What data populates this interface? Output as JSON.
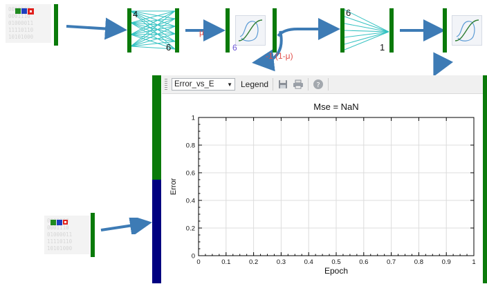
{
  "pipeline": {
    "input_binary_lines": [
      "0000000",
      "0001110",
      "01000011",
      "11110110",
      "10101000"
    ],
    "input_icon_colors": [
      "#1f8a1f",
      "#1f3fbf",
      "#e0201c"
    ],
    "layer1_in_label": "4",
    "layer1_out_label": "6",
    "mu_label": "μ",
    "activation_label": "6",
    "feedback_label": "-1 (1-μ)",
    "layer2_in_label": "6",
    "layer2_out_label": "1"
  },
  "toolbar": {
    "series_select": "Error_vs_E",
    "legend_label": "Legend",
    "save_icon": "floppy-disk-icon",
    "print_icon": "printer-icon",
    "help_icon": "help-icon"
  },
  "chart_data": {
    "type": "line",
    "title": "Mse = NaN",
    "xlabel": "Epoch",
    "ylabel": "Error",
    "xlim": [
      0,
      1
    ],
    "ylim": [
      0,
      1
    ],
    "x_ticks": [
      "0",
      "0.1",
      "0.2",
      "0.3",
      "0.4",
      "0.5",
      "0.6",
      "0.7",
      "0.8",
      "0.9",
      "1"
    ],
    "y_ticks": [
      "0",
      "0.2",
      "0.4",
      "0.6",
      "0.8",
      "1"
    ],
    "grid": true,
    "series": []
  },
  "colors": {
    "node_green": "#0a7a0a",
    "node_blue": "#000080",
    "arrow_blue": "#3d7bb5",
    "connection_teal": "#35c2c2"
  }
}
